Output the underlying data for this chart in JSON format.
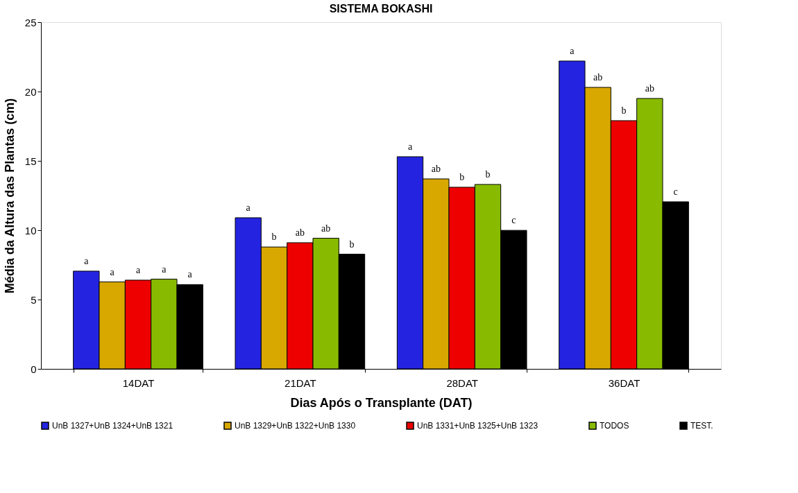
{
  "chart_data": {
    "type": "bar",
    "title": "SISTEMA BOKASHI",
    "xlabel": "Dias Após o Transplante (DAT)",
    "ylabel": "Média da Altura das Plantas (cm)",
    "categories": [
      "14DAT",
      "21DAT",
      "28DAT",
      "36DAT"
    ],
    "ylim": [
      0,
      25
    ],
    "yticks": [
      0,
      5,
      10,
      15,
      20,
      25
    ],
    "grid": false,
    "legend": "bottom",
    "series": [
      {
        "name": "UnB 1327+UnB 1324+UnB 1321",
        "color": "#2424e0",
        "values": [
          7.05,
          10.9,
          15.3,
          22.2
        ],
        "value_labels": [
          "a",
          "a",
          "a",
          "a"
        ]
      },
      {
        "name": "UnB 1329+UnB 1322+UnB 1330",
        "color": "#d9a800",
        "values": [
          6.27,
          8.79,
          13.7,
          20.3
        ],
        "value_labels": [
          "a",
          "b",
          "ab",
          "ab"
        ]
      },
      {
        "name": "UnB 1331+UnB 1325+UnB 1323",
        "color": "#ee0000",
        "values": [
          6.4,
          9.1,
          13.1,
          17.9
        ],
        "value_labels": [
          "a",
          "ab",
          "b",
          "b"
        ]
      },
      {
        "name": "TODOS",
        "color": "#88bb00",
        "values": [
          6.47,
          9.42,
          13.3,
          19.5
        ],
        "value_labels": [
          "a",
          "ab",
          "b",
          "ab"
        ]
      },
      {
        "name": "TEST.",
        "color": "#000000",
        "values": [
          6.08,
          8.27,
          9.99,
          12.05
        ],
        "value_labels": [
          "a",
          "b",
          "c",
          "c"
        ]
      }
    ]
  }
}
